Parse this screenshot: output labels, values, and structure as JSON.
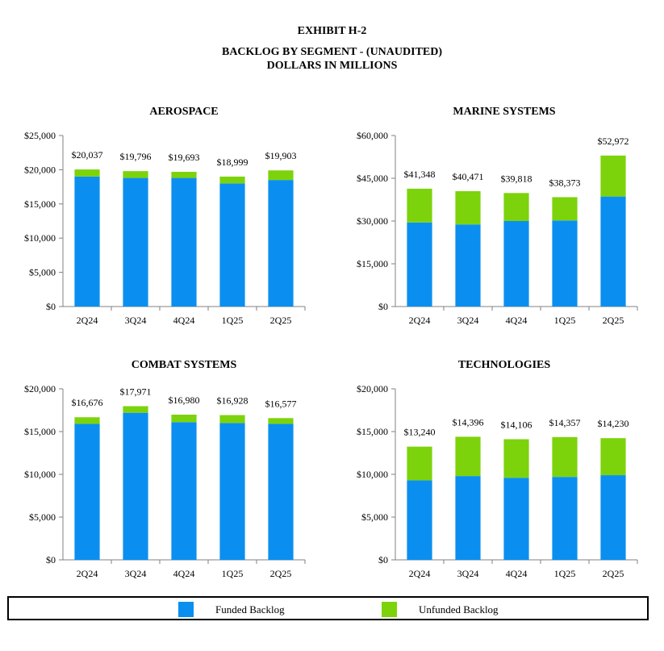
{
  "header": {
    "exhibit": "EXHIBIT H-2",
    "title_line1": "BACKLOG BY SEGMENT - (UNAUDITED)",
    "title_line2": "DOLLARS IN MILLIONS"
  },
  "colors": {
    "funded": "#0a8ff0",
    "unfunded": "#7dd30b",
    "axis": "#808080"
  },
  "legend": {
    "funded_label": "Funded Backlog",
    "unfunded_label": "Unfunded Backlog"
  },
  "chart_data": [
    {
      "type": "bar",
      "stacked": true,
      "title": "AEROSPACE",
      "categories": [
        "2Q24",
        "3Q24",
        "4Q24",
        "1Q25",
        "2Q25"
      ],
      "series": [
        {
          "name": "Funded Backlog",
          "values": [
            19000,
            18800,
            18800,
            18000,
            18500
          ]
        },
        {
          "name": "Unfunded Backlog",
          "values": [
            1037,
            996,
            893,
            999,
            1403
          ]
        }
      ],
      "totals": [
        "$20,037",
        "$19,796",
        "$19,693",
        "$18,999",
        "$19,903"
      ],
      "ylim": [
        0,
        25000
      ],
      "yticks": [
        0,
        5000,
        10000,
        15000,
        20000,
        25000
      ],
      "ytick_labels": [
        "$0",
        "$5,000",
        "$10,000",
        "$15,000",
        "$20,000",
        "$25,000"
      ]
    },
    {
      "type": "bar",
      "stacked": true,
      "title": "MARINE SYSTEMS",
      "categories": [
        "2Q24",
        "3Q24",
        "4Q24",
        "1Q25",
        "2Q25"
      ],
      "series": [
        {
          "name": "Funded Backlog",
          "values": [
            29500,
            28800,
            30000,
            30200,
            38600
          ]
        },
        {
          "name": "Unfunded Backlog",
          "values": [
            11848,
            11671,
            9818,
            8173,
            14372
          ]
        }
      ],
      "totals": [
        "$41,348",
        "$40,471",
        "$39,818",
        "$38,373",
        "$52,972"
      ],
      "ylim": [
        0,
        60000
      ],
      "yticks": [
        0,
        15000,
        30000,
        45000,
        60000
      ],
      "ytick_labels": [
        "$0",
        "$15,000",
        "$30,000",
        "$45,000",
        "$60,000"
      ]
    },
    {
      "type": "bar",
      "stacked": true,
      "title": "COMBAT SYSTEMS",
      "categories": [
        "2Q24",
        "3Q24",
        "4Q24",
        "1Q25",
        "2Q25"
      ],
      "series": [
        {
          "name": "Funded Backlog",
          "values": [
            15900,
            17200,
            16100,
            16000,
            15900
          ]
        },
        {
          "name": "Unfunded Backlog",
          "values": [
            776,
            771,
            880,
            928,
            677
          ]
        }
      ],
      "totals": [
        "$16,676",
        "$17,971",
        "$16,980",
        "$16,928",
        "$16,577"
      ],
      "ylim": [
        0,
        20000
      ],
      "yticks": [
        0,
        5000,
        10000,
        15000,
        20000
      ],
      "ytick_labels": [
        "$0",
        "$5,000",
        "$10,000",
        "$15,000",
        "$20,000"
      ]
    },
    {
      "type": "bar",
      "stacked": true,
      "title": "TECHNOLOGIES",
      "categories": [
        "2Q24",
        "3Q24",
        "4Q24",
        "1Q25",
        "2Q25"
      ],
      "series": [
        {
          "name": "Funded Backlog",
          "values": [
            9300,
            9800,
            9600,
            9700,
            9900
          ]
        },
        {
          "name": "Unfunded Backlog",
          "values": [
            3940,
            4596,
            4506,
            4657,
            4330
          ]
        }
      ],
      "totals": [
        "$13,240",
        "$14,396",
        "$14,106",
        "$14,357",
        "$14,230"
      ],
      "ylim": [
        0,
        20000
      ],
      "yticks": [
        0,
        5000,
        10000,
        15000,
        20000
      ],
      "ytick_labels": [
        "$0",
        "$5,000",
        "$10,000",
        "$15,000",
        "$20,000"
      ]
    }
  ]
}
